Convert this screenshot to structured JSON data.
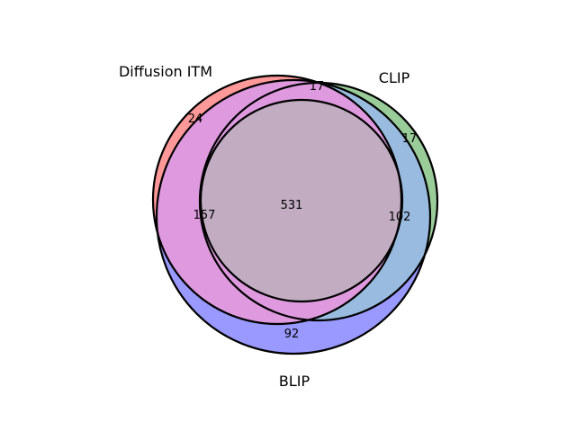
{
  "sets": {
    "a": {
      "label": "Diffusion ITM",
      "color": "#ff0000"
    },
    "b": {
      "label": "CLIP",
      "color": "#008000"
    },
    "c": {
      "label": "BLIP",
      "color": "#0000ff"
    }
  },
  "region_colors": {
    "a_only": "#ff9999",
    "b_only": "#99cc99",
    "c_only": "#9999ff",
    "ab": "#cc9999",
    "ac": "#df99df",
    "bc": "#99bbdf",
    "abc": "#c1acc1"
  },
  "counts": {
    "a_only": "24",
    "b_only": "17",
    "c_only": "92",
    "ab": "17",
    "ac": "157",
    "bc": "102",
    "abc": "531"
  }
}
